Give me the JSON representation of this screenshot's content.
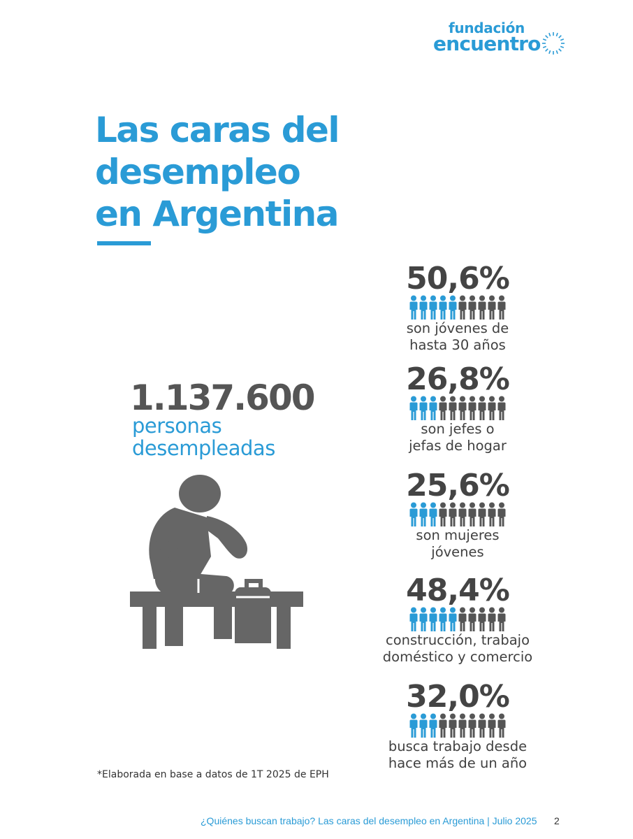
{
  "logo": {
    "line1": "fundación",
    "line2": "encuentro",
    "color": "#2a9bd6"
  },
  "title": {
    "lines": [
      "Las caras del",
      "desempleo",
      "en Argentina"
    ]
  },
  "headline": {
    "number": "1.137.600",
    "label_lines": [
      "personas",
      "desempleadas"
    ]
  },
  "figure_icon": "person-sitting-on-bench-with-suitcase-icon",
  "stats": [
    {
      "percent": "50,6%",
      "share": 0.506,
      "desc_lines": [
        "son jóvenes de",
        "hasta  30 años"
      ]
    },
    {
      "percent": "26,8%",
      "share": 0.268,
      "desc_lines": [
        "son jefes o",
        "jefas de hogar"
      ]
    },
    {
      "percent": "25,6%",
      "share": 0.256,
      "desc_lines": [
        "son mujeres",
        "jóvenes"
      ]
    },
    {
      "percent": "48,4%",
      "share": 0.484,
      "desc_lines": [
        "construcción, trabajo",
        "doméstico y comercio"
      ]
    },
    {
      "percent": "32,0%",
      "share": 0.32,
      "desc_lines": [
        "busca trabajo desde",
        "hace más de un año"
      ]
    }
  ],
  "colors": {
    "accent": "#2a9bd6",
    "dark": "#444444",
    "person_gray": "#555555"
  },
  "footnote": "*Elaborada en base a datos de 1T 2025 de EPH",
  "footer": {
    "text": "¿Quiénes buscan trabajo? Las caras del desempleo en Argentina | Julio 2025",
    "page": "2"
  }
}
